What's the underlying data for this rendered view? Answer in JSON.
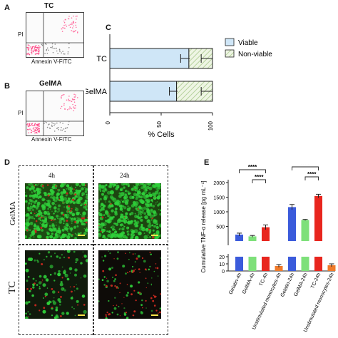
{
  "panel_labels": {
    "a": "A",
    "b": "B",
    "c": "C",
    "d": "D",
    "e": "E"
  },
  "flow": {
    "a_title": "TC",
    "b_title": "GelMA",
    "y_axis": "PI",
    "x_axis": "Annexin V-FITC"
  },
  "micrographs": {
    "col_4h": "4h",
    "col_24h": "24h",
    "row_gelma": "GelMA",
    "row_tc": "TC"
  },
  "colors": {
    "viable": "#cfe6f7",
    "nonviable_hatch": "#cfe3b8",
    "blue": "#3b5bdb",
    "green": "#7ee07a",
    "red": "#e8261e",
    "orange": "#f07a2a",
    "micro_green": "#2fd03a",
    "micro_red": "#c0281e"
  },
  "chart_data": [
    {
      "type": "bar",
      "orientation": "horizontal",
      "stacked": true,
      "categories": [
        "TC",
        "GelMA"
      ],
      "series": [
        {
          "name": "Viable",
          "values": [
            77,
            65
          ],
          "error": [
            [
              69,
              78
            ],
            [
              58,
              66
            ]
          ]
        },
        {
          "name": "Non-viable",
          "values": [
            23,
            35
          ],
          "error_nonviable": [
            [
              89,
              100
            ],
            [
              89,
              100
            ]
          ]
        }
      ],
      "xlabel": "% Cells",
      "xlim": [
        0,
        100
      ],
      "xticks": [
        "0",
        "50",
        "100"
      ],
      "legend": "right"
    },
    {
      "type": "bar",
      "categories": [
        "Gelatin-4h",
        "GelMA-4h",
        "TC-4h",
        "Unstimulated monocytes-4h",
        "Gelatin-24h",
        "GelMA-24h",
        "TC-24h",
        "Unstimulated monocytes-24h"
      ],
      "values": [
        220,
        160,
        470,
        7,
        1160,
        720,
        1540,
        8
      ],
      "errors": [
        50,
        30,
        80,
        2,
        90,
        20,
        60,
        2
      ],
      "bar_colors": [
        "blue",
        "green",
        "red",
        "orange",
        "blue",
        "green",
        "red",
        "orange"
      ],
      "ylabel": "Cumulative TNF-α release [pg mL⁻¹]",
      "yticks_upper": [
        "0",
        "500",
        "1000",
        "1500",
        "2000"
      ],
      "yticks_lower": [
        "0",
        "10",
        "20"
      ],
      "ylim": [
        0,
        2000
      ],
      "broken_axis": true,
      "significance": [
        {
          "from": 0,
          "to": 2,
          "text": "****"
        },
        {
          "from": 1,
          "to": 2,
          "text": "****"
        },
        {
          "from": 4,
          "to": 6,
          "text": "****"
        },
        {
          "from": 5,
          "to": 6,
          "text": "****"
        }
      ]
    }
  ]
}
